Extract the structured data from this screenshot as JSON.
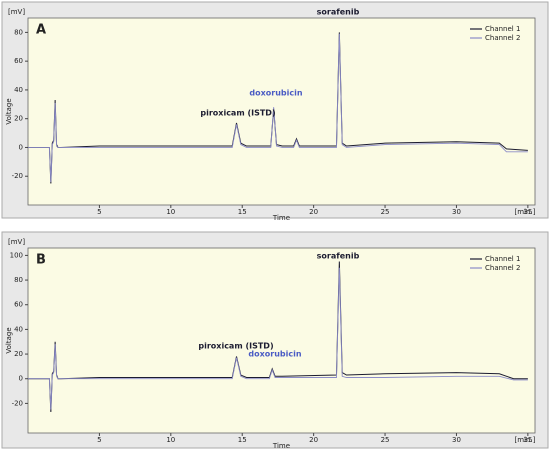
{
  "chart_data": [
    {
      "type": "line",
      "panel_label": "A",
      "y_unit": "[mV]",
      "ylabel": "Voltage",
      "xlabel": "Time",
      "x_unit": "[min.]",
      "xlim": [
        0,
        35.5
      ],
      "ylim": [
        -40,
        90
      ],
      "xticks": [
        5,
        10,
        15,
        20,
        25,
        30,
        35
      ],
      "yticks": [
        -20,
        0,
        20,
        40,
        60,
        80
      ],
      "series": [
        {
          "name": "Channel 1",
          "color": "#1c1c30",
          "x": [
            0,
            1.5,
            1.6,
            1.7,
            1.8,
            1.9,
            2.0,
            2.1,
            2.3,
            5,
            10,
            14.3,
            14.6,
            14.9,
            15.3,
            17.0,
            17.2,
            17.4,
            17.8,
            18.6,
            18.8,
            19.0,
            21.6,
            21.8,
            22.0,
            22.3,
            25,
            30,
            33,
            33.5,
            35
          ],
          "values": [
            0,
            0,
            -25,
            3,
            5,
            33,
            2,
            0,
            0,
            1,
            1,
            1,
            17,
            3,
            1,
            1,
            27,
            2,
            1,
            1,
            6,
            1,
            1,
            80,
            3,
            1,
            3,
            4,
            3,
            -1,
            -2
          ]
        },
        {
          "name": "Channel 2",
          "color": "#8c8cc8",
          "x": [
            0,
            1.5,
            1.6,
            1.7,
            1.8,
            1.9,
            2.0,
            2.1,
            2.3,
            5,
            10,
            14.3,
            14.6,
            14.9,
            15.3,
            17.0,
            17.2,
            17.4,
            17.8,
            18.6,
            18.8,
            19.0,
            21.6,
            21.8,
            22.0,
            22.3,
            25,
            30,
            33,
            33.5,
            35
          ],
          "values": [
            0,
            0,
            -24,
            2,
            4,
            31,
            1,
            0,
            0,
            0,
            0,
            0,
            16,
            2,
            0,
            0,
            28,
            1,
            0,
            0,
            5,
            0,
            0,
            79,
            2,
            0,
            2,
            3,
            2,
            -3,
            -3
          ]
        }
      ],
      "annotations": [
        {
          "text": "piroxicam (ISTD)",
          "color": "#1c1c30"
        },
        {
          "text": "doxorubicin",
          "color": "#4a5bc4"
        },
        {
          "text": "sorafenib",
          "color": "#1c1c30"
        }
      ]
    },
    {
      "type": "line",
      "panel_label": "B",
      "y_unit": "[mV]",
      "ylabel": "Voltage",
      "xlabel": "Time",
      "x_unit": "[min.]",
      "xlim": [
        0,
        35.5
      ],
      "ylim": [
        -44,
        106
      ],
      "xticks": [
        5,
        10,
        15,
        20,
        25,
        30,
        35
      ],
      "yticks": [
        -20,
        0,
        20,
        40,
        60,
        80,
        100
      ],
      "series": [
        {
          "name": "Channel 1",
          "color": "#1c1c30",
          "x": [
            0,
            1.5,
            1.6,
            1.7,
            1.8,
            1.9,
            2.0,
            2.1,
            2.3,
            5,
            10,
            14.3,
            14.6,
            14.9,
            15.3,
            16.9,
            17.1,
            17.3,
            17.8,
            21.6,
            21.8,
            22.0,
            22.3,
            25,
            30,
            33,
            34,
            35
          ],
          "values": [
            0,
            0,
            -27,
            4,
            6,
            30,
            3,
            0,
            0,
            1,
            1,
            1,
            18,
            3,
            1,
            1,
            8,
            2,
            2,
            3,
            95,
            5,
            3,
            4,
            5,
            4,
            0,
            0
          ]
        },
        {
          "name": "Channel 2",
          "color": "#8c8cc8",
          "x": [
            0,
            1.5,
            1.6,
            1.7,
            1.8,
            1.9,
            2.0,
            2.1,
            2.3,
            5,
            10,
            14.3,
            14.6,
            14.9,
            15.3,
            16.9,
            17.1,
            17.3,
            17.8,
            21.6,
            21.8,
            22.0,
            22.3,
            25,
            30,
            33,
            34,
            35
          ],
          "values": [
            0,
            0,
            -25,
            3,
            5,
            28,
            2,
            0,
            0,
            0,
            0,
            0,
            17,
            2,
            0,
            0,
            7,
            1,
            1,
            1,
            90,
            2,
            1,
            1,
            2,
            2,
            -1,
            -1
          ]
        }
      ],
      "annotations": [
        {
          "text": "piroxicam (ISTD)",
          "color": "#1c1c30"
        },
        {
          "text": "doxorubicin",
          "color": "#4a5bc4"
        },
        {
          "text": "sorafenib",
          "color": "#1c1c30"
        }
      ]
    }
  ]
}
